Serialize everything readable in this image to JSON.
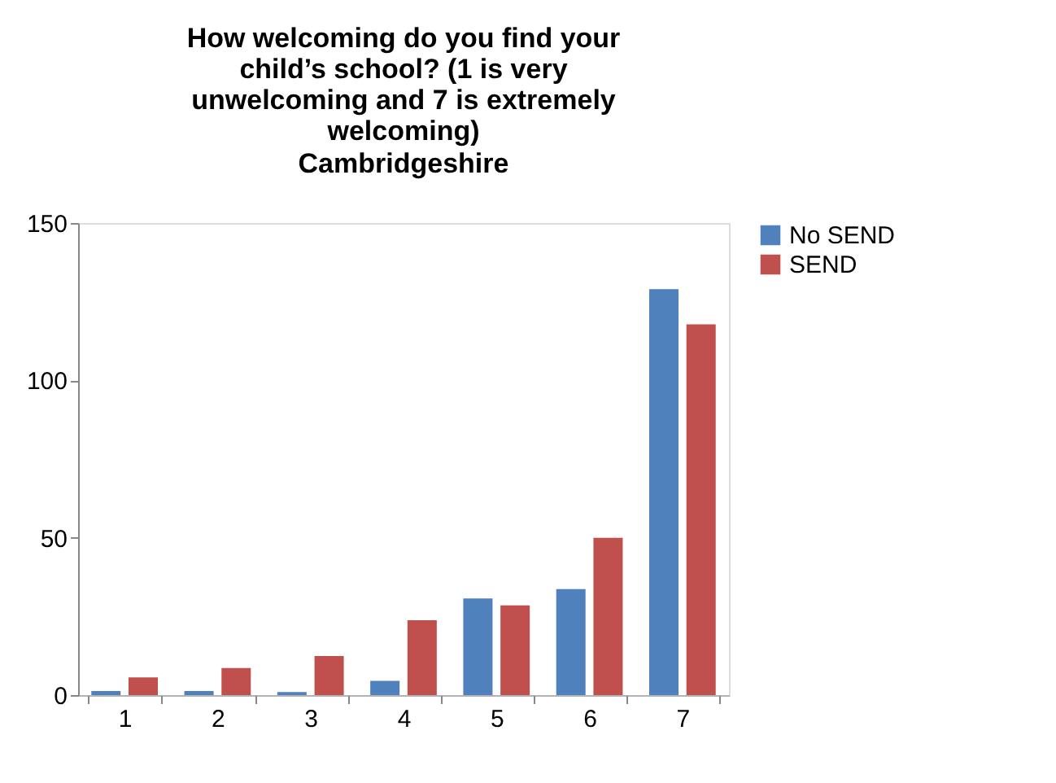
{
  "chart_data": {
    "type": "bar",
    "title": "How welcoming do you find your child’s school? (1 is very unwelcoming and 7 is extremely welcoming)",
    "subtitle": "Cambridgeshire",
    "categories": [
      "1",
      "2",
      "3",
      "4",
      "5",
      "6",
      "7"
    ],
    "series": [
      {
        "name": "No SEND",
        "color": "#4f81bd",
        "values": [
          1.3,
          1.3,
          1,
          4.5,
          30.7,
          33.7,
          129
        ]
      },
      {
        "name": "SEND",
        "color": "#c0504d",
        "values": [
          5.6,
          8.6,
          12.4,
          23.8,
          28.5,
          50,
          117.8
        ]
      }
    ],
    "ylim": [
      0,
      150
    ],
    "yticks": [
      0,
      50,
      100,
      150
    ],
    "grid": false,
    "legend": "right"
  }
}
